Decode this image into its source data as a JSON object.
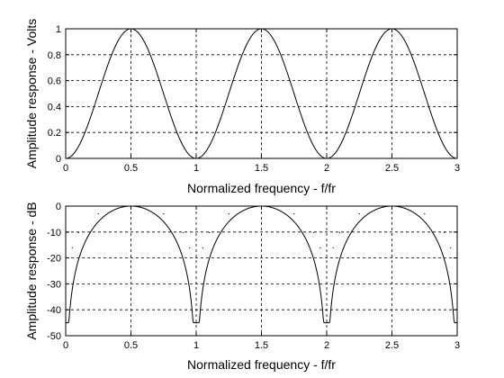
{
  "chart_data": [
    {
      "type": "line",
      "title": "",
      "xlabel": "Normalized frequency - f/fr",
      "ylabel": "Amplitude response - Volts",
      "xlim": [
        0,
        3
      ],
      "ylim": [
        0,
        1
      ],
      "x_ticks": [
        "0",
        "0.5",
        "1",
        "1.5",
        "2",
        "2.5",
        "3"
      ],
      "y_ticks": [
        "0",
        "0.2",
        "0.4",
        "0.6",
        "0.8",
        "1"
      ],
      "grid": true,
      "series": [
        {
          "x": [
            0,
            0.25,
            0.5,
            0.75,
            1,
            1.25,
            1.5,
            1.75,
            2,
            2.25,
            2.5,
            2.75,
            3
          ],
          "values": [
            0,
            0.5,
            1,
            0.5,
            0,
            0.5,
            1,
            0.5,
            0,
            0.5,
            1,
            0.5,
            0
          ]
        }
      ]
    },
    {
      "type": "line",
      "title": "",
      "xlabel": "Normalized frequency - f/fr",
      "ylabel": "Amplitude response - dB",
      "xlim": [
        0,
        3
      ],
      "ylim": [
        -50,
        0
      ],
      "x_ticks": [
        "0",
        "0.5",
        "1",
        "1.5",
        "2",
        "2.5",
        "3"
      ],
      "y_ticks": [
        "-50",
        "-40",
        "-30",
        "-20",
        "-10",
        "0"
      ],
      "grid": true,
      "series": [
        {
          "x": [
            0,
            0.05,
            0.1,
            0.25,
            0.5,
            0.75,
            0.9,
            0.95,
            1,
            1.05,
            1.1,
            1.25,
            1.5,
            1.75,
            1.9,
            1.95,
            2,
            2.05,
            2.1,
            2.25,
            2.5,
            2.75,
            2.9,
            2.95,
            3
          ],
          "values": [
            -45,
            -16.1,
            -10.2,
            -3,
            0,
            -3,
            -10.2,
            -16.1,
            -45,
            -16.1,
            -10.2,
            -3,
            0,
            -3,
            -10.2,
            -16.1,
            -45,
            -16.1,
            -10.2,
            -3,
            0,
            -3,
            -10.2,
            -16.1,
            -45
          ]
        }
      ]
    }
  ]
}
